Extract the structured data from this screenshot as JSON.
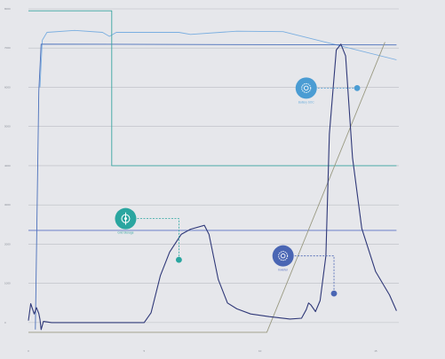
{
  "chart_data": {
    "type": "line",
    "title": "",
    "xlabel": "",
    "ylabel": "",
    "xlim": [
      0,
      16
    ],
    "ylim": [
      -500,
      8000
    ],
    "x_ticks": [
      {
        "v": 0,
        "label": "0"
      },
      {
        "v": 5,
        "label": "5"
      },
      {
        "v": 10,
        "label": "10"
      },
      {
        "v": 15,
        "label": "15"
      }
    ],
    "y_ticks": [
      {
        "v": 0,
        "label": "0"
      },
      {
        "v": 1000,
        "label": "1000"
      },
      {
        "v": 2000,
        "label": "2000"
      },
      {
        "v": 3000,
        "label": "3000"
      },
      {
        "v": 4000,
        "label": "4000"
      },
      {
        "v": 5000,
        "label": "5000"
      },
      {
        "v": 6000,
        "label": "6000"
      },
      {
        "v": 7000,
        "label": "7000"
      },
      {
        "v": 8000,
        "label": "8000"
      }
    ],
    "grid": true,
    "series": [
      {
        "key": "light_blue",
        "color": "#7aaee0",
        "width": 0.9,
        "points": [
          [
            0.5,
            6000
          ],
          [
            0.6,
            7200
          ],
          [
            0.8,
            7400
          ],
          [
            2.0,
            7450
          ],
          [
            3.2,
            7400
          ],
          [
            3.5,
            7300
          ],
          [
            3.8,
            7400
          ],
          [
            6.5,
            7400
          ],
          [
            7.0,
            7350
          ],
          [
            9.0,
            7430
          ],
          [
            11.0,
            7420
          ],
          [
            15.9,
            6700
          ]
        ]
      },
      {
        "key": "blue",
        "color": "#4a6fba",
        "width": 0.9,
        "points": [
          [
            0.3,
            -180
          ],
          [
            0.45,
            5900
          ],
          [
            0.55,
            7100
          ],
          [
            15.9,
            7080
          ]
        ]
      },
      {
        "key": "teal",
        "color": "#3aa6a1",
        "width": 0.9,
        "points": [
          [
            0,
            7950
          ],
          [
            3.6,
            7950
          ],
          [
            3.6,
            4000
          ],
          [
            15.9,
            4000
          ]
        ]
      },
      {
        "key": "indigo",
        "color": "#5a72c4",
        "width": 0.9,
        "points": [
          [
            0,
            2350
          ],
          [
            15.9,
            2350
          ]
        ]
      },
      {
        "key": "olive",
        "color": "#9a9a82",
        "width": 0.9,
        "points": [
          [
            0,
            -250
          ],
          [
            10.3,
            -250
          ],
          [
            15.4,
            7150
          ]
        ]
      },
      {
        "key": "navy",
        "color": "#2f3878",
        "width": 1.1,
        "points": [
          [
            0,
            50
          ],
          [
            0.1,
            480
          ],
          [
            0.25,
            220
          ],
          [
            0.35,
            380
          ],
          [
            0.45,
            230
          ],
          [
            0.5,
            80
          ],
          [
            0.55,
            -180
          ],
          [
            0.65,
            30
          ],
          [
            1.0,
            0
          ],
          [
            3.0,
            0
          ],
          [
            5.0,
            0
          ],
          [
            5.3,
            250
          ],
          [
            5.7,
            1200
          ],
          [
            6.1,
            1800
          ],
          [
            6.6,
            2250
          ],
          [
            7.0,
            2380
          ],
          [
            7.6,
            2480
          ],
          [
            7.8,
            2250
          ],
          [
            8.2,
            1100
          ],
          [
            8.6,
            500
          ],
          [
            9.0,
            350
          ],
          [
            9.6,
            220
          ],
          [
            10.4,
            150
          ],
          [
            11.3,
            90
          ],
          [
            11.8,
            110
          ],
          [
            12.0,
            330
          ],
          [
            12.1,
            500
          ],
          [
            12.2,
            450
          ],
          [
            12.4,
            280
          ],
          [
            12.6,
            560
          ],
          [
            12.85,
            1700
          ],
          [
            13.0,
            4800
          ],
          [
            13.3,
            6950
          ],
          [
            13.5,
            7100
          ],
          [
            13.7,
            6800
          ],
          [
            14.0,
            4200
          ],
          [
            14.4,
            2400
          ],
          [
            15.0,
            1300
          ],
          [
            15.6,
            700
          ],
          [
            15.9,
            300
          ]
        ]
      }
    ],
    "annotations": [
      {
        "icon": "gear-icon",
        "caption": "Battery SOC",
        "fill": "#4a9cd3",
        "text_color": "#6aaedc",
        "bubble": [
          12.0,
          5980
        ],
        "target": [
          14.2,
          5980
        ],
        "dash": "#4a9cd3"
      },
      {
        "icon": "plug-icon",
        "caption": "Grid Storage",
        "fill": "#2aa6a0",
        "text_color": "#3aa6a1",
        "bubble": [
          4.2,
          2650
        ],
        "target": [
          6.5,
          1600
        ],
        "dash": "#2aa6a0"
      },
      {
        "icon": "gear-icon",
        "caption": "Inverter",
        "fill": "#4a66b4",
        "text_color": "#5a72c4",
        "bubble": [
          11.0,
          1700
        ],
        "target": [
          13.2,
          740
        ],
        "dash": "#4a66b4"
      }
    ]
  }
}
